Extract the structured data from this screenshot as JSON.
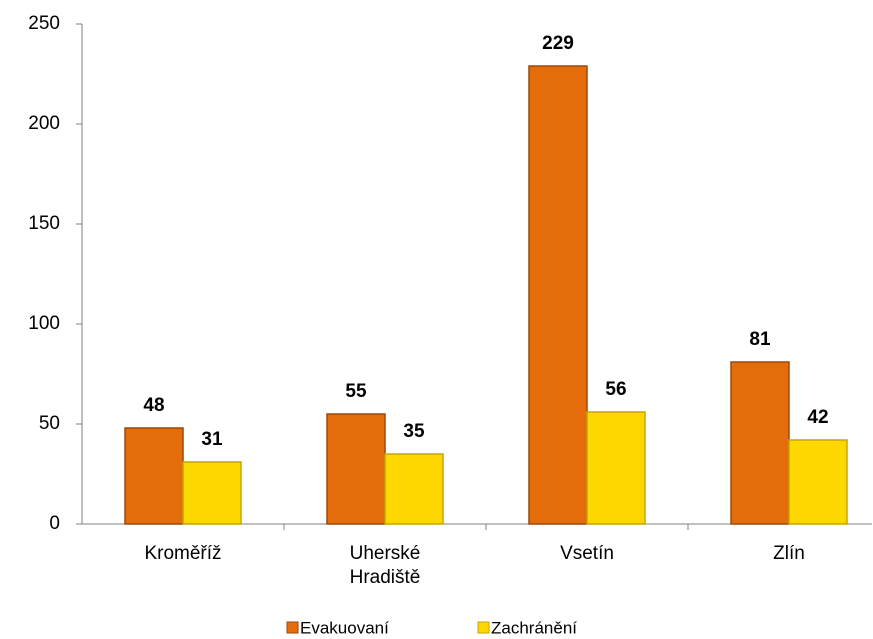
{
  "chart_data": {
    "type": "bar",
    "categories": [
      "Kroměříž",
      "Uherské Hradiště",
      "Vsetín",
      "Zlín"
    ],
    "series": [
      {
        "name": "Evakuovaní",
        "color": "#e46c0a",
        "values": [
          48,
          55,
          229,
          81
        ]
      },
      {
        "name": "Zachránění",
        "color": "#ffd700",
        "values": [
          31,
          35,
          56,
          42
        ]
      }
    ],
    "ylim": [
      0,
      250
    ],
    "yticks": [
      0,
      50,
      100,
      150,
      200,
      250
    ],
    "grid": false,
    "legend": "bottom"
  }
}
